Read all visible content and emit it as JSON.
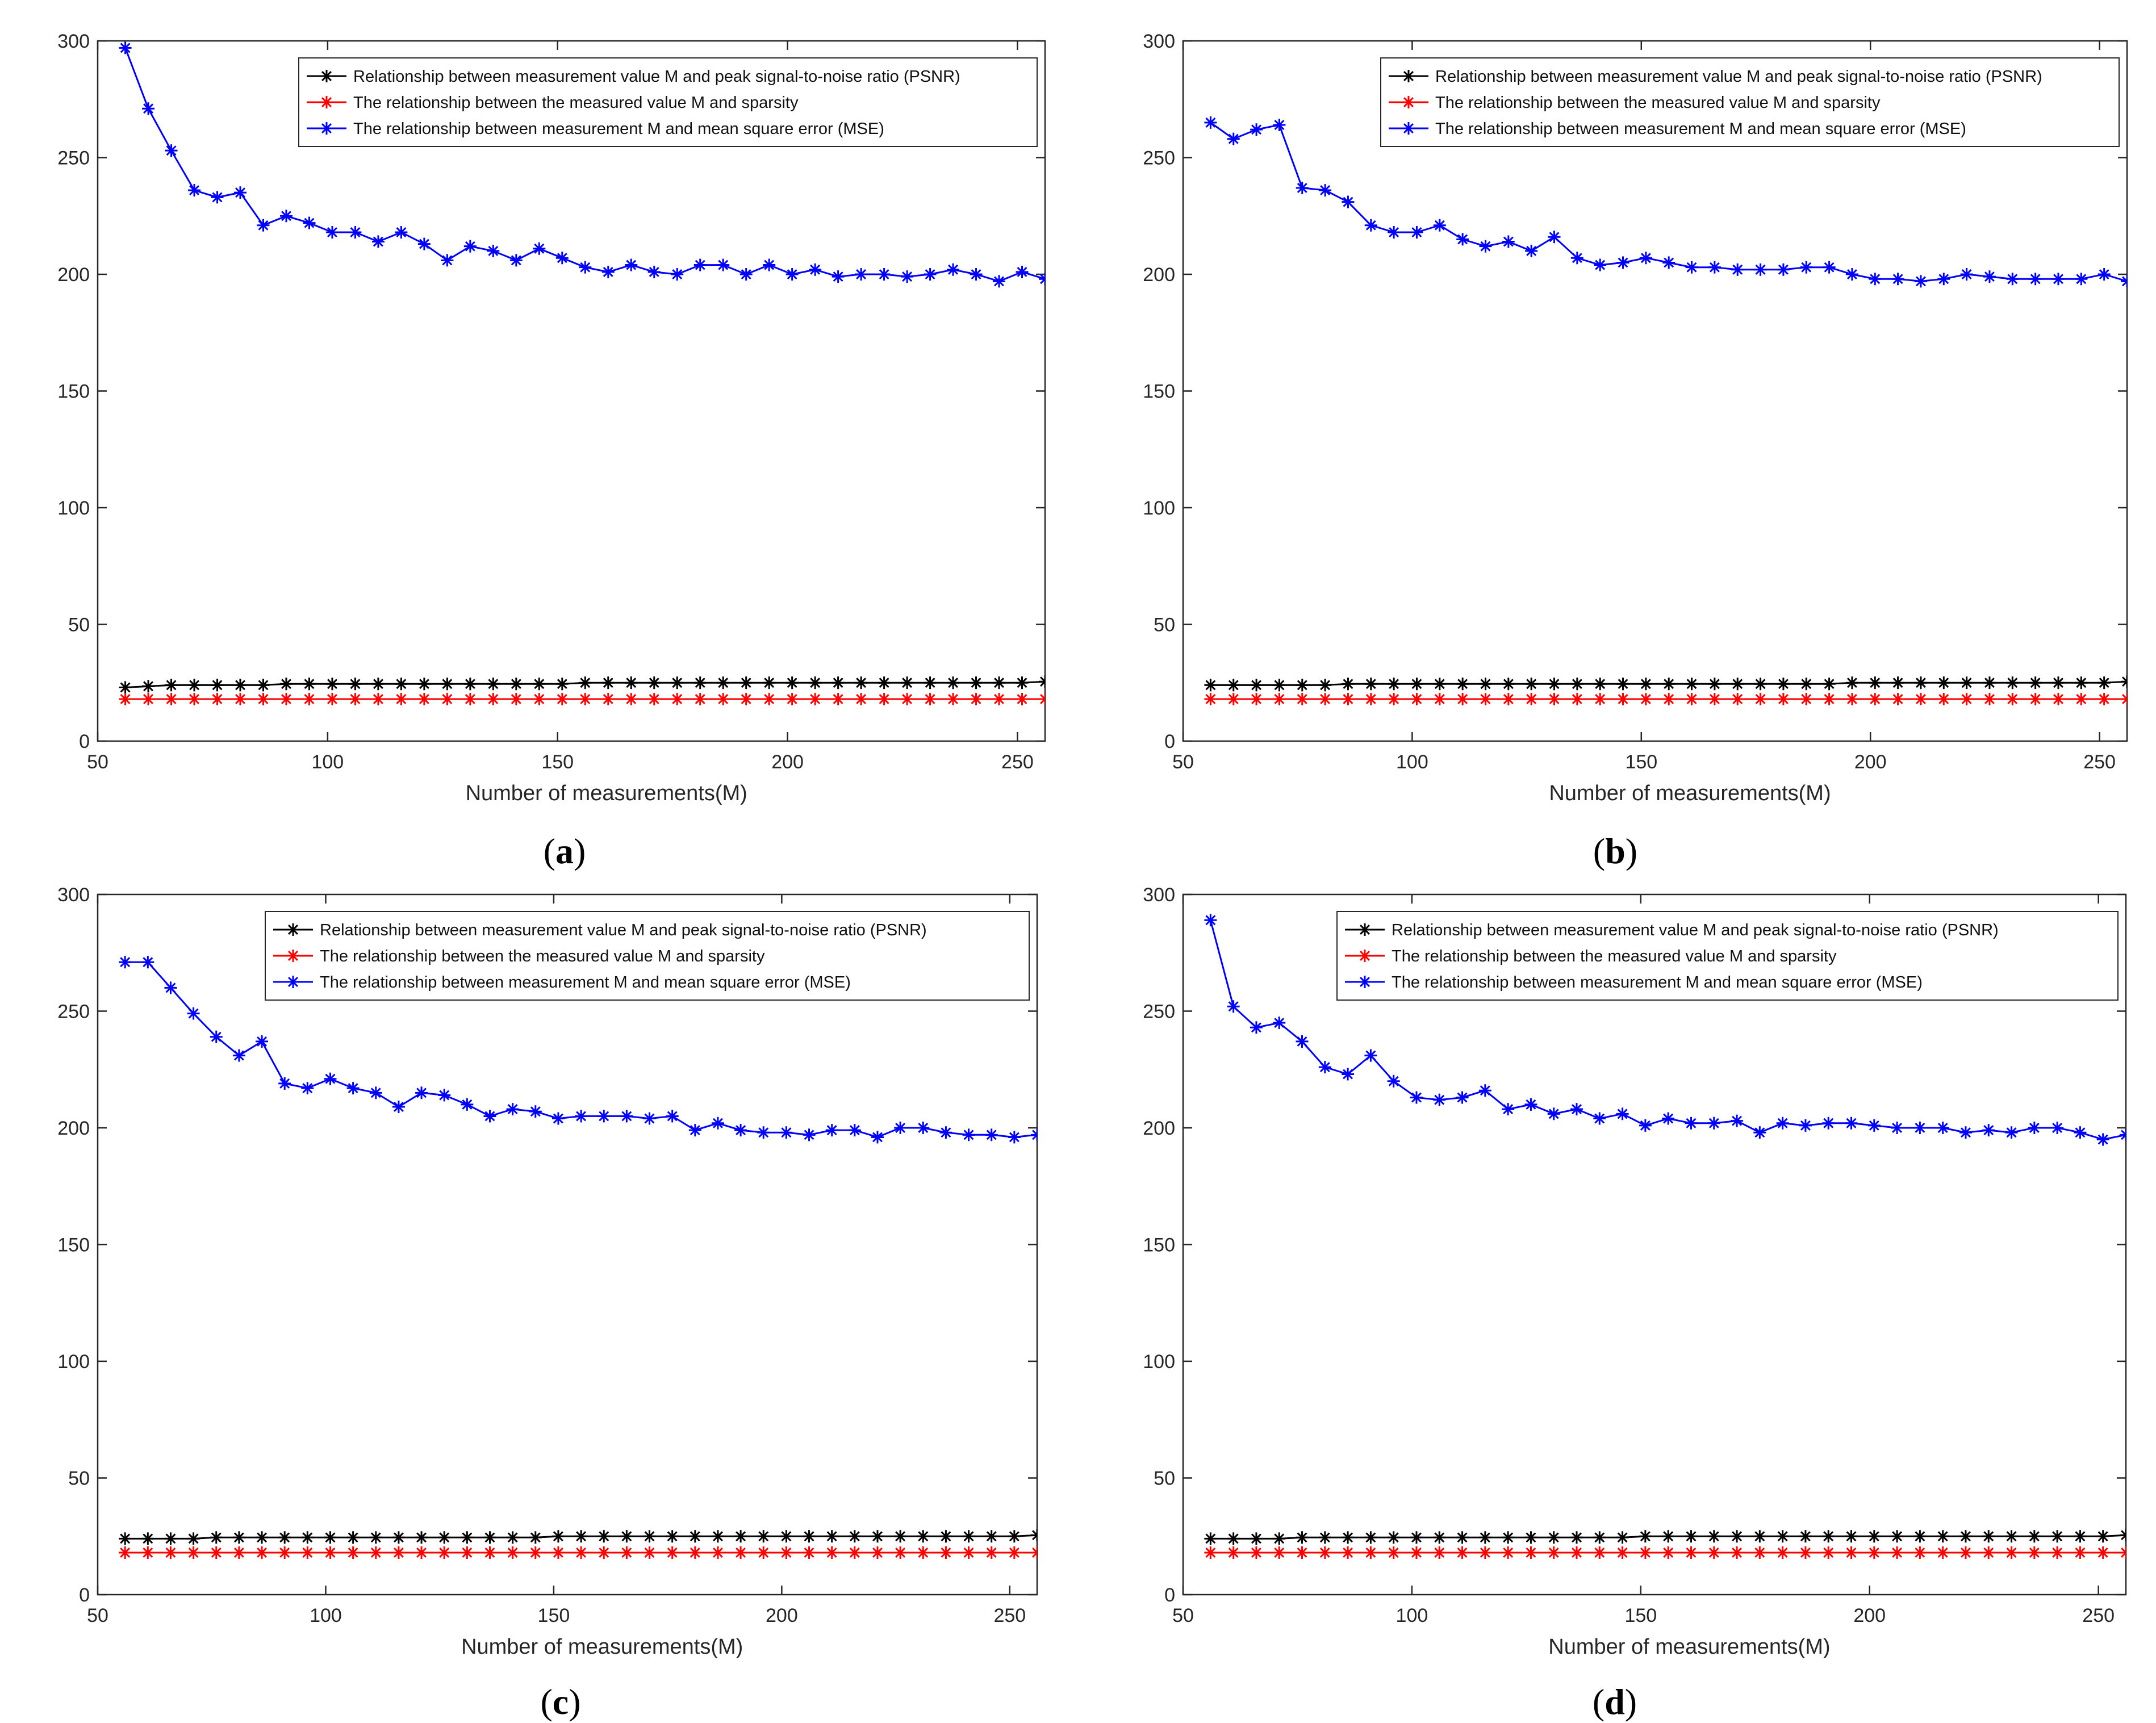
{
  "chart_data": [
    {
      "type": "line",
      "panel": "a",
      "caption": "(a)",
      "caption_letter": "a",
      "xlabel": "Number of measurements(M)",
      "ylabel": "",
      "xlim": [
        50,
        256
      ],
      "ylim": [
        0,
        300
      ],
      "xticks": [
        50,
        100,
        150,
        200,
        250
      ],
      "yticks": [
        0,
        50,
        100,
        150,
        200,
        250,
        300
      ],
      "grid": false,
      "legend_position": "top-right",
      "x": [
        56,
        61,
        66,
        71,
        76,
        81,
        86,
        91,
        96,
        101,
        106,
        111,
        116,
        121,
        126,
        131,
        136,
        141,
        146,
        151,
        156,
        161,
        166,
        171,
        176,
        181,
        186,
        191,
        196,
        201,
        206,
        211,
        216,
        221,
        226,
        231,
        236,
        241,
        246,
        251,
        256
      ],
      "series": [
        {
          "name": "Relationship between measurement value M and peak signal-to-noise ratio (PSNR)",
          "color": "#000000",
          "values": [
            23,
            23.5,
            24,
            24,
            24,
            24,
            24,
            24.5,
            24.5,
            24.5,
            24.5,
            24.5,
            24.5,
            24.5,
            24.5,
            24.5,
            24.5,
            24.5,
            24.5,
            24.5,
            25,
            25,
            25,
            25,
            25,
            25,
            25,
            25,
            25,
            25,
            25,
            25,
            25,
            25,
            25,
            25,
            25,
            25,
            25,
            25,
            25.5
          ]
        },
        {
          "name": "The relationship between the measured value M and sparsity",
          "color": "#ff0000",
          "values": [
            18,
            18,
            18,
            18,
            18,
            18,
            18,
            18,
            18,
            18,
            18,
            18,
            18,
            18,
            18,
            18,
            18,
            18,
            18,
            18,
            18,
            18,
            18,
            18,
            18,
            18,
            18,
            18,
            18,
            18,
            18,
            18,
            18,
            18,
            18,
            18,
            18,
            18,
            18,
            18,
            18
          ]
        },
        {
          "name": "The relationship between measurement M and mean square error (MSE)",
          "color": "#0000ff",
          "values": [
            297,
            271,
            253,
            236,
            233,
            235,
            221,
            225,
            222,
            218,
            218,
            214,
            218,
            213,
            206,
            212,
            210,
            206,
            211,
            207,
            203,
            201,
            204,
            201,
            200,
            204,
            204,
            200,
            204,
            200,
            202,
            199,
            200,
            200,
            199,
            200,
            202,
            200,
            197,
            201,
            198
          ]
        }
      ]
    },
    {
      "type": "line",
      "panel": "b",
      "caption": "(b)",
      "caption_letter": "b",
      "xlabel": "Number of measurements(M)",
      "ylabel": "",
      "xlim": [
        50,
        256
      ],
      "ylim": [
        0,
        300
      ],
      "xticks": [
        50,
        100,
        150,
        200,
        250
      ],
      "yticks": [
        0,
        50,
        100,
        150,
        200,
        250,
        300
      ],
      "grid": false,
      "legend_position": "top-right",
      "x": [
        56,
        61,
        66,
        71,
        76,
        81,
        86,
        91,
        96,
        101,
        106,
        111,
        116,
        121,
        126,
        131,
        136,
        141,
        146,
        151,
        156,
        161,
        166,
        171,
        176,
        181,
        186,
        191,
        196,
        201,
        206,
        211,
        216,
        221,
        226,
        231,
        236,
        241,
        246,
        251,
        256
      ],
      "series": [
        {
          "name": "Relationship between measurement value M and peak signal-to-noise ratio (PSNR)",
          "color": "#000000",
          "values": [
            24,
            24,
            24,
            24,
            24,
            24,
            24.5,
            24.5,
            24.5,
            24.5,
            24.5,
            24.5,
            24.5,
            24.5,
            24.5,
            24.5,
            24.5,
            24.5,
            24.5,
            24.5,
            24.5,
            24.5,
            24.5,
            24.5,
            24.5,
            24.5,
            24.5,
            24.5,
            25,
            25,
            25,
            25,
            25,
            25,
            25,
            25,
            25,
            25,
            25,
            25,
            25.5
          ]
        },
        {
          "name": "The relationship between the measured value M and sparsity",
          "color": "#ff0000",
          "values": [
            18,
            18,
            18,
            18,
            18,
            18,
            18,
            18,
            18,
            18,
            18,
            18,
            18,
            18,
            18,
            18,
            18,
            18,
            18,
            18,
            18,
            18,
            18,
            18,
            18,
            18,
            18,
            18,
            18,
            18,
            18,
            18,
            18,
            18,
            18,
            18,
            18,
            18,
            18,
            18,
            18
          ]
        },
        {
          "name": "The relationship between measurement M and mean square error (MSE)",
          "color": "#0000ff",
          "values": [
            265,
            258,
            262,
            264,
            237,
            236,
            231,
            221,
            218,
            218,
            221,
            215,
            212,
            214,
            210,
            216,
            207,
            204,
            205,
            207,
            205,
            203,
            203,
            202,
            202,
            202,
            203,
            203,
            200,
            198,
            198,
            197,
            198,
            200,
            199,
            198,
            198,
            198,
            198,
            200,
            197
          ]
        }
      ]
    },
    {
      "type": "line",
      "panel": "c",
      "caption": "(c)",
      "caption_letter": "c",
      "xlabel": "Number of measurements(M)",
      "ylabel": "",
      "xlim": [
        50,
        256
      ],
      "ylim": [
        0,
        300
      ],
      "xticks": [
        50,
        100,
        150,
        200,
        250
      ],
      "yticks": [
        0,
        50,
        100,
        150,
        200,
        250,
        300
      ],
      "grid": false,
      "legend_position": "top-right",
      "x": [
        56,
        61,
        66,
        71,
        76,
        81,
        86,
        91,
        96,
        101,
        106,
        111,
        116,
        121,
        126,
        131,
        136,
        141,
        146,
        151,
        156,
        161,
        166,
        171,
        176,
        181,
        186,
        191,
        196,
        201,
        206,
        211,
        216,
        221,
        226,
        231,
        236,
        241,
        246,
        251,
        256
      ],
      "series": [
        {
          "name": "Relationship between measurement value M and peak signal-to-noise ratio (PSNR)",
          "color": "#000000",
          "values": [
            24,
            24,
            24,
            24,
            24.5,
            24.5,
            24.5,
            24.5,
            24.5,
            24.5,
            24.5,
            24.5,
            24.5,
            24.5,
            24.5,
            24.5,
            24.5,
            24.5,
            24.5,
            25,
            25,
            25,
            25,
            25,
            25,
            25,
            25,
            25,
            25,
            25,
            25,
            25,
            25,
            25,
            25,
            25,
            25,
            25,
            25,
            25,
            25.5
          ]
        },
        {
          "name": "The relationship between the measured value M and sparsity",
          "color": "#ff0000",
          "values": [
            18,
            18,
            18,
            18,
            18,
            18,
            18,
            18,
            18,
            18,
            18,
            18,
            18,
            18,
            18,
            18,
            18,
            18,
            18,
            18,
            18,
            18,
            18,
            18,
            18,
            18,
            18,
            18,
            18,
            18,
            18,
            18,
            18,
            18,
            18,
            18,
            18,
            18,
            18,
            18,
            18
          ]
        },
        {
          "name": "The relationship between measurement M and mean square error (MSE)",
          "color": "#0000ff",
          "values": [
            271,
            271,
            260,
            249,
            239,
            231,
            237,
            219,
            217,
            221,
            217,
            215,
            209,
            215,
            214,
            210,
            205,
            208,
            207,
            204,
            205,
            205,
            205,
            204,
            205,
            199,
            202,
            199,
            198,
            198,
            197,
            199,
            199,
            196,
            200,
            200,
            198,
            197,
            197,
            196,
            197
          ]
        }
      ]
    },
    {
      "type": "line",
      "panel": "d",
      "caption": "(d)",
      "caption_letter": "d",
      "xlabel": "Number of measurements(M)",
      "ylabel": "",
      "xlim": [
        50,
        256
      ],
      "ylim": [
        0,
        300
      ],
      "xticks": [
        50,
        100,
        150,
        200,
        250
      ],
      "yticks": [
        0,
        50,
        100,
        150,
        200,
        250,
        300
      ],
      "grid": false,
      "legend_position": "top-right",
      "x": [
        56,
        61,
        66,
        71,
        76,
        81,
        86,
        91,
        96,
        101,
        106,
        111,
        116,
        121,
        126,
        131,
        136,
        141,
        146,
        151,
        156,
        161,
        166,
        171,
        176,
        181,
        186,
        191,
        196,
        201,
        206,
        211,
        216,
        221,
        226,
        231,
        236,
        241,
        246,
        251,
        256
      ],
      "series": [
        {
          "name": "Relationship between measurement value M and peak signal-to-noise ratio (PSNR)",
          "color": "#000000",
          "values": [
            24,
            24,
            24,
            24,
            24.5,
            24.5,
            24.5,
            24.5,
            24.5,
            24.5,
            24.5,
            24.5,
            24.5,
            24.5,
            24.5,
            24.5,
            24.5,
            24.5,
            24.5,
            25,
            25,
            25,
            25,
            25,
            25,
            25,
            25,
            25,
            25,
            25,
            25,
            25,
            25,
            25,
            25,
            25,
            25,
            25,
            25,
            25,
            25.5
          ]
        },
        {
          "name": "The relationship between the measured value M and sparsity",
          "color": "#ff0000",
          "values": [
            18,
            18,
            18,
            18,
            18,
            18,
            18,
            18,
            18,
            18,
            18,
            18,
            18,
            18,
            18,
            18,
            18,
            18,
            18,
            18,
            18,
            18,
            18,
            18,
            18,
            18,
            18,
            18,
            18,
            18,
            18,
            18,
            18,
            18,
            18,
            18,
            18,
            18,
            18,
            18,
            18
          ]
        },
        {
          "name": "The relationship between measurement M and mean square error (MSE)",
          "color": "#0000ff",
          "values": [
            289,
            252,
            243,
            245,
            237,
            226,
            223,
            231,
            220,
            213,
            212,
            213,
            216,
            208,
            210,
            206,
            208,
            204,
            206,
            201,
            204,
            202,
            202,
            203,
            198,
            202,
            201,
            202,
            202,
            201,
            200,
            200,
            200,
            198,
            199,
            198,
            200,
            200,
            198,
            195,
            197
          ]
        }
      ]
    }
  ]
}
